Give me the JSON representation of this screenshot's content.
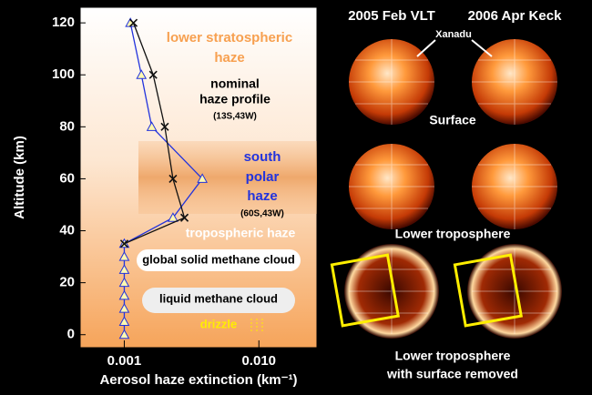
{
  "chart_data": {
    "type": "line",
    "xlabel": "Aerosol haze extinction (km⁻¹)",
    "ylabel": "Altitude (km)",
    "xscale": "log",
    "xlim": [
      0.00047,
      0.027
    ],
    "ylim": [
      -5,
      126
    ],
    "xticks": [
      0.001,
      {
        "value": 0.01,
        "label": "0.010"
      }
    ],
    "yticks": [
      0,
      20,
      40,
      60,
      80,
      100,
      120
    ],
    "series": [
      {
        "name": "(60S,43W)",
        "color": "#2233dd",
        "marker": "triangle",
        "x": [
          0.001,
          0.001,
          0.001,
          0.001,
          0.001,
          0.001,
          0.001,
          0.001,
          0.0023,
          0.0038,
          0.0016,
          0.00134,
          0.00111
        ],
        "y": [
          0,
          5,
          10,
          15,
          20,
          25,
          30,
          35,
          45,
          60,
          80,
          100,
          120
        ]
      },
      {
        "name": "(13S,43W)",
        "color": "#111111",
        "marker": "x",
        "x": [
          0.001,
          0.0028,
          0.0023,
          0.002,
          0.00164,
          0.00117
        ],
        "y": [
          35,
          45,
          60,
          80,
          100,
          120
        ]
      }
    ],
    "annotations": [
      "lower stratospheric",
      "haze",
      "nominal",
      "haze profile",
      "south",
      "polar",
      "haze",
      "tropospheric haze",
      "global solid methane cloud",
      "liquid methane cloud",
      "drizzle"
    ]
  },
  "panels": {
    "columns": [
      "2005 Feb VLT",
      "2006 Apr Keck"
    ],
    "feature": "Xanadu",
    "rows": [
      "Surface",
      "Lower troposphere",
      "Lower troposphere",
      "with surface removed"
    ]
  }
}
